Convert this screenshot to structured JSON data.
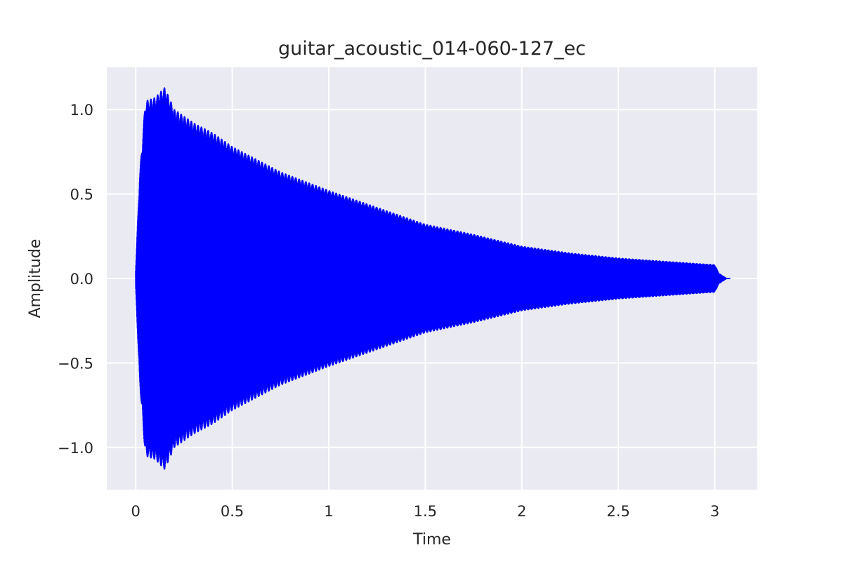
{
  "chart_data": {
    "type": "line",
    "title": "guitar_acoustic_014-060-127_ec",
    "xlabel": "Time",
    "ylabel": "Amplitude",
    "xlim": [
      -0.15,
      3.22
    ],
    "ylim": [
      -1.25,
      1.25
    ],
    "x_ticks": [
      0,
      0.5,
      1,
      1.5,
      2,
      2.5,
      3
    ],
    "x_tick_labels": [
      "0",
      "0.5",
      "1",
      "1.5",
      "2",
      "2.5",
      "3"
    ],
    "y_ticks": [
      -1.0,
      -0.5,
      0.0,
      0.5,
      1.0
    ],
    "y_tick_labels": [
      "−1.0",
      "−0.5",
      "0.0",
      "0.5",
      "1.0"
    ],
    "grid": true,
    "background": "#eaeaf2",
    "gridline_color": "#ffffff",
    "line_color": "#0000ff",
    "series": [
      {
        "envelope_points": [
          {
            "x": 0.0,
            "y": 0.05
          },
          {
            "x": 0.02,
            "y": 0.6
          },
          {
            "x": 0.05,
            "y": 1.05
          },
          {
            "x": 0.1,
            "y": 1.07
          },
          {
            "x": 0.15,
            "y": 1.13
          },
          {
            "x": 0.2,
            "y": 1.0
          },
          {
            "x": 0.3,
            "y": 0.92
          },
          {
            "x": 0.4,
            "y": 0.86
          },
          {
            "x": 0.5,
            "y": 0.78
          },
          {
            "x": 0.75,
            "y": 0.63
          },
          {
            "x": 1.0,
            "y": 0.52
          },
          {
            "x": 1.25,
            "y": 0.42
          },
          {
            "x": 1.5,
            "y": 0.32
          },
          {
            "x": 1.75,
            "y": 0.26
          },
          {
            "x": 2.0,
            "y": 0.19
          },
          {
            "x": 2.25,
            "y": 0.15
          },
          {
            "x": 2.5,
            "y": 0.12
          },
          {
            "x": 2.75,
            "y": 0.1
          },
          {
            "x": 3.0,
            "y": 0.08
          },
          {
            "x": 3.02,
            "y": 0.03
          },
          {
            "x": 3.06,
            "y": 0.0
          },
          {
            "x": 3.08,
            "y": 0.0
          }
        ]
      }
    ]
  }
}
